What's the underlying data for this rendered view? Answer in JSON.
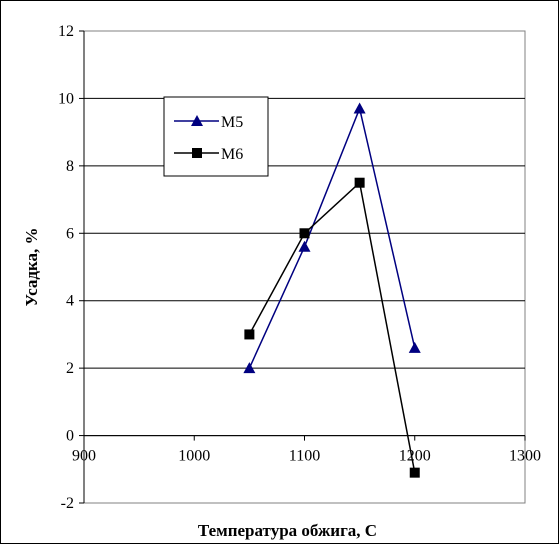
{
  "chart_data": {
    "type": "line",
    "title": "",
    "xlabel": "Температура обжига, С",
    "ylabel": "Усадка, %",
    "xlim": [
      900,
      1300
    ],
    "ylim": [
      -2,
      12
    ],
    "x_ticks": [
      900,
      1000,
      1100,
      1200,
      1300
    ],
    "y_ticks": [
      -2,
      0,
      2,
      4,
      6,
      8,
      10,
      12
    ],
    "grid": "horizontal",
    "legend_position": "upper-left",
    "series": [
      {
        "name": "M5",
        "color": "#000080",
        "marker": "triangle",
        "x": [
          1050,
          1100,
          1150,
          1200
        ],
        "y": [
          2.0,
          5.6,
          9.7,
          2.6
        ]
      },
      {
        "name": "M6",
        "color": "#000000",
        "marker": "square",
        "x": [
          1050,
          1100,
          1150,
          1200
        ],
        "y": [
          3.0,
          6.0,
          7.5,
          -1.1
        ]
      }
    ]
  }
}
